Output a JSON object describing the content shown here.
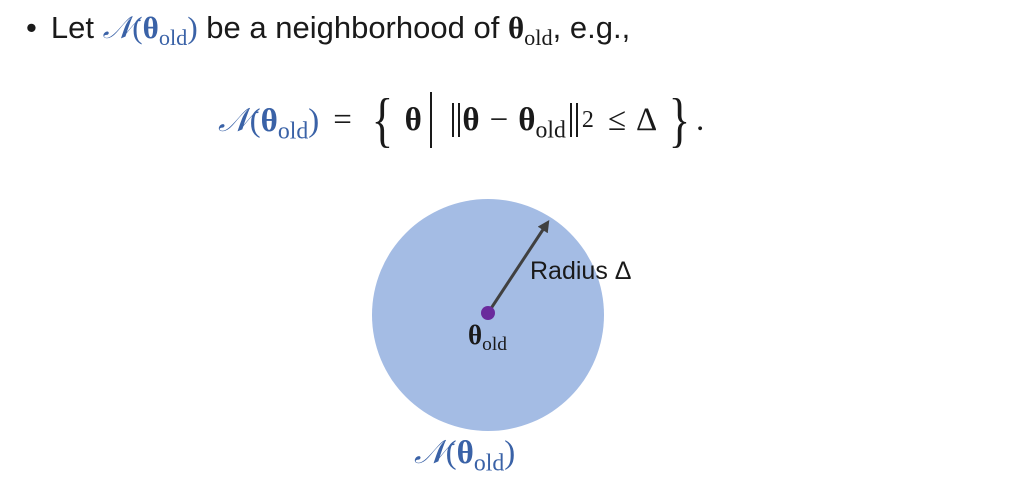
{
  "bullet": {
    "marker": "•",
    "text_let": "Let",
    "neighborhood_symbol": "𝒩",
    "open_paren": "(",
    "theta": "θ",
    "old_sub": "old",
    "close_paren": ")",
    "text_middle": "be a neighborhood of",
    "text_end": ", e.g.,"
  },
  "equation": {
    "neighborhood_symbol": "𝒩",
    "open_paren": "(",
    "theta": "θ",
    "old_sub": "old",
    "close_paren": ")",
    "equals": "=",
    "left_brace": "{",
    "theta_var": "θ",
    "minus": "−",
    "norm_sub": "2",
    "leq": "≤",
    "delta": "Δ",
    "right_brace": "}",
    "period": "."
  },
  "diagram": {
    "radius_label": "Radius Δ",
    "center_theta": "θ",
    "center_sub": "old",
    "region_symbol": "𝒩",
    "region_open": "(",
    "region_theta": "θ",
    "region_sub": "old",
    "region_close": ")",
    "colors": {
      "circle_fill": "#a4bce4",
      "center_point": "#6a2a9c",
      "arrow": "#404040",
      "accent_blue": "#3a62a7"
    }
  }
}
